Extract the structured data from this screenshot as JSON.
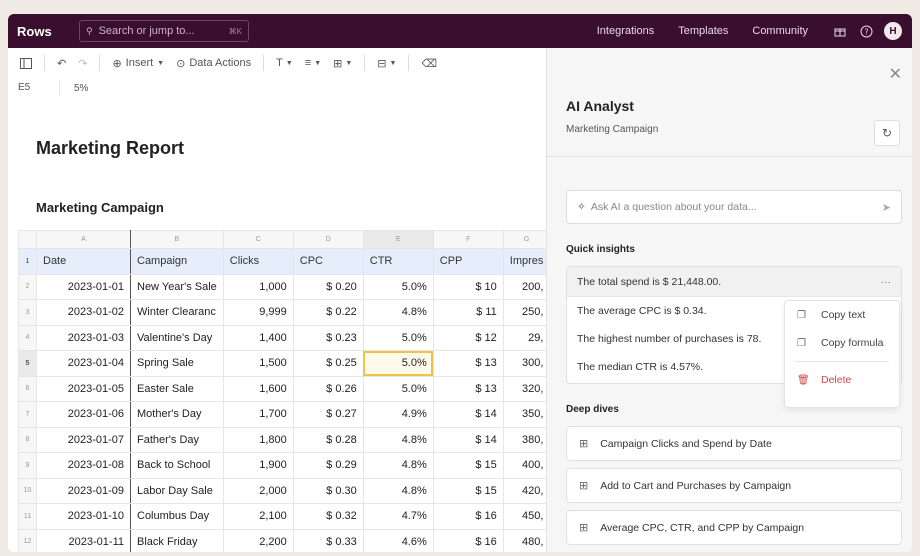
{
  "topbar": {
    "logo": "Rows",
    "search_placeholder": "Search or jump to...",
    "search_shortcut": "⌘K",
    "nav_links": [
      "Integrations",
      "Templates",
      "Community"
    ],
    "avatar_initial": "H"
  },
  "toolbar": {
    "insert_label": "Insert",
    "data_actions_label": "Data Actions"
  },
  "formula_bar": {
    "cell_ref": "E5",
    "value": "5%"
  },
  "sheet": {
    "report_title": "Marketing Report",
    "section_title": "Marketing Campaign",
    "column_letters": [
      "A",
      "B",
      "C",
      "D",
      "E",
      "F",
      "G"
    ],
    "headers": [
      "Date",
      "Campaign",
      "Clicks",
      "CPC",
      "CTR",
      "CPP",
      "Impres"
    ],
    "rows": [
      [
        "2023-01-01",
        "New Year's Sale",
        "1,000",
        "$ 0.20",
        "5.0%",
        "$ 10",
        "200,"
      ],
      [
        "2023-01-02",
        "Winter Clearanc",
        "9,999",
        "$ 0.22",
        "4.8%",
        "$ 11",
        "250,"
      ],
      [
        "2023-01-03",
        "Valentine's Day",
        "1,400",
        "$ 0.23",
        "5.0%",
        "$ 12",
        "29,"
      ],
      [
        "2023-01-04",
        "Spring Sale",
        "1,500",
        "$ 0.25",
        "5.0%",
        "$ 13",
        "300,"
      ],
      [
        "2023-01-05",
        "Easter Sale",
        "1,600",
        "$ 0.26",
        "5.0%",
        "$ 13",
        "320,"
      ],
      [
        "2023-01-06",
        "Mother's Day",
        "1,700",
        "$ 0.27",
        "4.9%",
        "$ 14",
        "350,"
      ],
      [
        "2023-01-07",
        "Father's Day",
        "1,800",
        "$ 0.28",
        "4.8%",
        "$ 14",
        "380,"
      ],
      [
        "2023-01-08",
        "Back to School",
        "1,900",
        "$ 0.29",
        "4.8%",
        "$ 15",
        "400,"
      ],
      [
        "2023-01-09",
        "Labor Day Sale",
        "2,000",
        "$ 0.30",
        "4.8%",
        "$ 15",
        "420,"
      ],
      [
        "2023-01-10",
        "Columbus Day",
        "2,100",
        "$ 0.32",
        "4.7%",
        "$ 16",
        "450,"
      ],
      [
        "2023-01-11",
        "Black Friday",
        "2,200",
        "$ 0.33",
        "4.6%",
        "$ 16",
        "480,"
      ]
    ],
    "row_numbers": [
      "1",
      "2",
      "3",
      "4",
      "5",
      "6",
      "7",
      "8",
      "9",
      "10",
      "11",
      "12"
    ]
  },
  "panel": {
    "title": "AI Analyst",
    "subtitle": "Marketing Campaign",
    "ask_placeholder": "Ask AI a question about your data...",
    "quick_insights_label": "Quick insights",
    "insights": [
      "The total spend is $ 21,448.00.",
      "The average CPC is $ 0.34.",
      "The highest number of purchases is 78.",
      "The median CTR is 4.57%."
    ],
    "more_label": "···",
    "context_menu": {
      "copy_text": "Copy text",
      "copy_formula": "Copy formula",
      "delete": "Delete"
    },
    "deep_dives_label": "Deep dives",
    "deep_dives": [
      "Campaign Clicks and Spend by Date",
      "Add to Cart and Purchases by Campaign",
      "Average CPC, CTR, and CPP by Campaign"
    ]
  }
}
